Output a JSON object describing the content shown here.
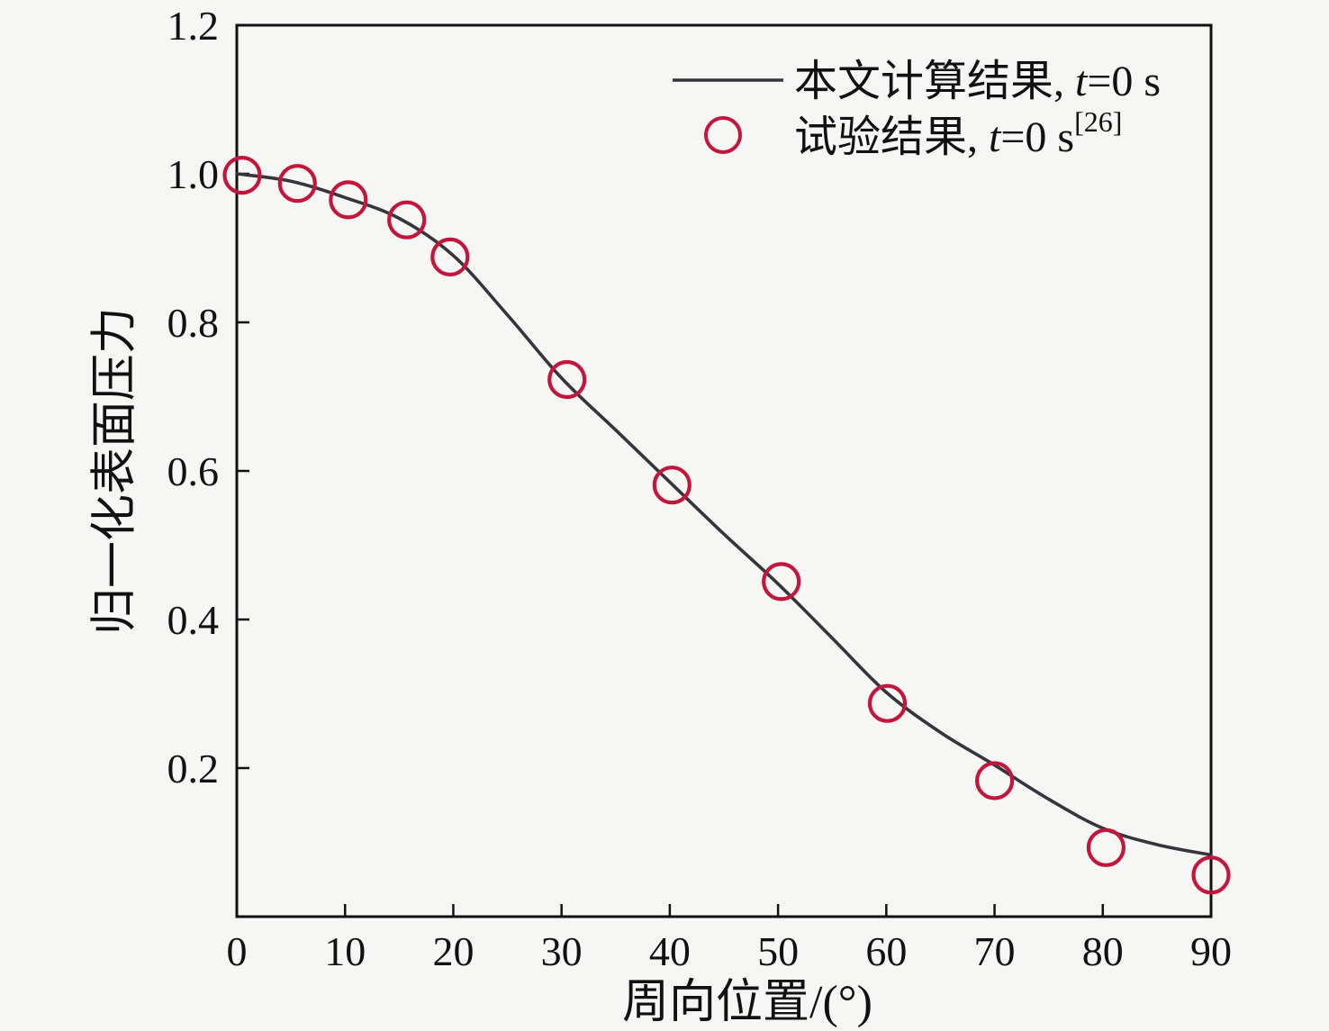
{
  "figure": {
    "background": "#f6f6f4",
    "axis_color": "#111111",
    "line_color": "#35353d",
    "marker_color": "#c3163c"
  },
  "chart_data": {
    "type": "line",
    "title": "",
    "xlabel": "周向位置/(°)",
    "ylabel": "归一化表面压力",
    "xlim": [
      0,
      90
    ],
    "ylim": [
      0,
      1.2
    ],
    "xticks": [
      "0",
      "10",
      "20",
      "30",
      "40",
      "50",
      "60",
      "70",
      "80",
      "90"
    ],
    "yticks": [
      "0.2",
      "0.4",
      "0.6",
      "0.8",
      "1.0",
      "1.2"
    ],
    "grid": false,
    "legend_position": "top-right",
    "series": [
      {
        "name": "本文计算结果, t=0 s",
        "type": "line",
        "color": "#35353d",
        "x": [
          0,
          5,
          10,
          15,
          20,
          25,
          30,
          35,
          40,
          45,
          50,
          55,
          60,
          65,
          70,
          75,
          80,
          85,
          90
        ],
        "y": [
          1.0,
          0.99,
          0.968,
          0.94,
          0.89,
          0.81,
          0.725,
          0.655,
          0.585,
          0.515,
          0.448,
          0.375,
          0.302,
          0.248,
          0.204,
          0.158,
          0.119,
          0.097,
          0.083
        ]
      },
      {
        "name": "试验结果, t=0 s[26]",
        "type": "scatter",
        "color": "#c3163c",
        "x": [
          0.5,
          5.6,
          10.3,
          15.7,
          19.7,
          30.5,
          40.2,
          50.3,
          60.1,
          70.0,
          80.3,
          90.0
        ],
        "y": [
          0.998,
          0.987,
          0.965,
          0.938,
          0.888,
          0.723,
          0.581,
          0.451,
          0.287,
          0.183,
          0.093,
          0.056
        ]
      }
    ]
  },
  "legend": {
    "items": [
      {
        "prefix": "本文计算结果, ",
        "t": "t",
        "suffix": "=0 s",
        "sup": ""
      },
      {
        "prefix": "试验结果, ",
        "t": "t",
        "suffix": "=0 s",
        "sup": "[26]"
      }
    ]
  }
}
